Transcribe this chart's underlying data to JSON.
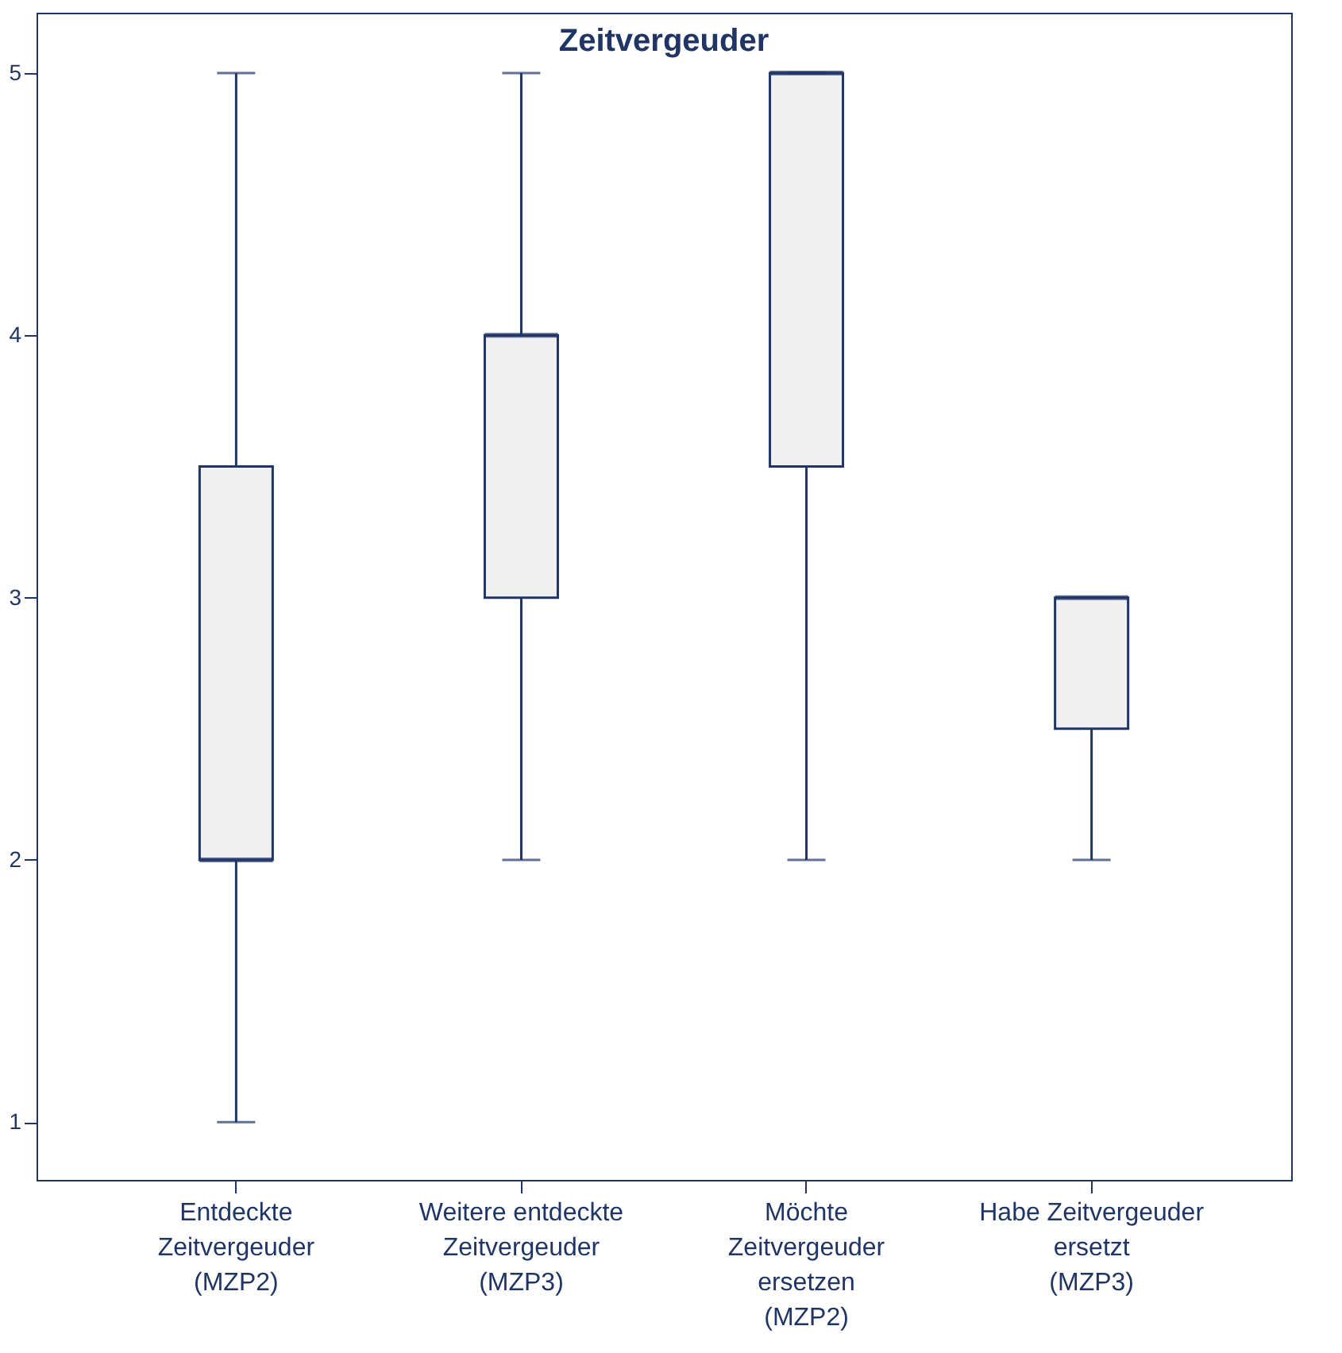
{
  "chart_data": {
    "type": "box",
    "title": "Zeitvergeuder",
    "categories": [
      "Entdeckte\nZeitvergeuder\n\n(MZP2)",
      "Weitere entdeckte\nZeitvergeuder\n\n(MZP3)",
      "Möchte\nZeitvergeuder\nersetzen\n(MZP2)",
      "Habe Zeitvergeuder\nersetzt\n\n(MZP3)"
    ],
    "boxes": [
      {
        "low": 1,
        "q1": 2,
        "median": 2,
        "q3": 3.5,
        "high": 5
      },
      {
        "low": 2,
        "q1": 3,
        "median": 4,
        "q3": 4,
        "high": 5
      },
      {
        "low": 2,
        "q1": 3.5,
        "median": 5,
        "q3": 5,
        "high": 5
      },
      {
        "low": 2,
        "q1": 2.5,
        "median": 3,
        "q3": 3,
        "high": 3
      }
    ],
    "color": "#f0f0f0",
    "ylim": [
      0.78,
      5.23
    ],
    "yticks": [
      1,
      2,
      3,
      4,
      5
    ],
    "grid": false
  }
}
